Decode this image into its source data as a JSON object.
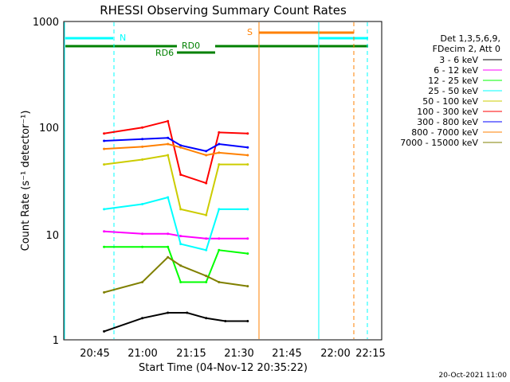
{
  "chart_data": {
    "type": "line",
    "title": "RHESSI Observing Summary Count Rates",
    "xlabel": "Start Time (04-Nov-12 20:35:22)",
    "ylabel": "Count Rate (s⁻¹ detector⁻¹)",
    "y_scale": "log",
    "ylim": [
      1,
      1000
    ],
    "xlim": [
      "20:35:22",
      "22:15:00"
    ],
    "y_ticks": [
      "1",
      "10",
      "100",
      "1000"
    ],
    "x_ticks": [
      "20:45",
      "21:00",
      "21:15",
      "21:30",
      "21:45",
      "22:00",
      "22:15"
    ],
    "legend_position": "right",
    "legend_header": [
      "Det 1,3,5,6,9,",
      "FDecim 2, Att 0"
    ],
    "series": [
      {
        "name": "3 - 6 keV",
        "color": "#000000",
        "x": [
          "20:48",
          "21:00",
          "21:08",
          "21:14",
          "21:20",
          "21:26",
          "21:33"
        ],
        "y": [
          1.2,
          1.6,
          1.8,
          1.8,
          1.6,
          1.5,
          1.5
        ]
      },
      {
        "name": "6 - 12 keV",
        "color": "#ff00ff",
        "x": [
          "20:48",
          "21:00",
          "21:08",
          "21:12",
          "21:20",
          "21:24",
          "21:33"
        ],
        "y": [
          10.5,
          10,
          10,
          9.5,
          9,
          9,
          9
        ]
      },
      {
        "name": "12 - 25 keV",
        "color": "#00ff00",
        "x": [
          "20:48",
          "21:00",
          "21:08",
          "21:12",
          "21:20",
          "21:24",
          "21:33"
        ],
        "y": [
          7.5,
          7.5,
          7.5,
          3.5,
          3.5,
          7,
          6.5
        ]
      },
      {
        "name": "25 - 50 keV",
        "color": "#00ffff",
        "x": [
          "20:48",
          "21:00",
          "21:08",
          "21:12",
          "21:20",
          "21:24",
          "21:33"
        ],
        "y": [
          17,
          19,
          22,
          8,
          7,
          17,
          17
        ]
      },
      {
        "name": "50 - 100 keV",
        "color": "#cccc00",
        "x": [
          "20:48",
          "21:00",
          "21:08",
          "21:12",
          "21:20",
          "21:24",
          "21:33"
        ],
        "y": [
          45,
          50,
          55,
          17,
          15,
          45,
          45
        ]
      },
      {
        "name": "100 - 300 keV",
        "color": "#ff0000",
        "x": [
          "20:48",
          "21:00",
          "21:08",
          "21:12",
          "21:20",
          "21:24",
          "21:33"
        ],
        "y": [
          88,
          100,
          115,
          36,
          30,
          90,
          88
        ]
      },
      {
        "name": "300 - 800 keV",
        "color": "#0000ff",
        "x": [
          "20:48",
          "21:00",
          "21:08",
          "21:12",
          "21:20",
          "21:24",
          "21:33"
        ],
        "y": [
          75,
          78,
          80,
          68,
          60,
          70,
          65
        ]
      },
      {
        "name": "800 - 7000 keV",
        "color": "#ff8000",
        "x": [
          "20:48",
          "21:00",
          "21:08",
          "21:12",
          "21:20",
          "21:24",
          "21:33"
        ],
        "y": [
          63,
          66,
          70,
          65,
          55,
          58,
          55
        ]
      },
      {
        "name": "7000 - 15000 keV",
        "color": "#808000",
        "x": [
          "20:48",
          "21:00",
          "21:08",
          "21:12",
          "21:20",
          "21:24",
          "21:33"
        ],
        "y": [
          2.8,
          3.5,
          6,
          5,
          4,
          3.5,
          3.2
        ]
      }
    ],
    "annotations": {
      "N_label": "N",
      "S_label": "S",
      "RD0_label": "RD0",
      "RD6_label": "RD6"
    },
    "footer_date": "20-Oct-2021 11:00"
  }
}
